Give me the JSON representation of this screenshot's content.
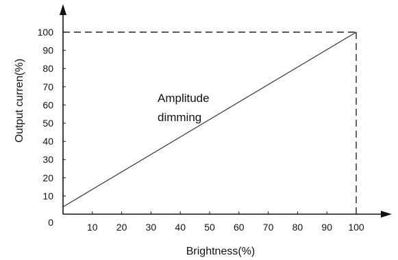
{
  "chart_data": {
    "type": "line",
    "xlabel": "Brightness(%)",
    "ylabel": "Output curren(%)",
    "xlim": [
      0,
      100
    ],
    "ylim": [
      0,
      100
    ],
    "x_ticks": [
      "10",
      "20",
      "30",
      "40",
      "50",
      "60",
      "70",
      "80",
      "90",
      "100"
    ],
    "y_ticks": [
      "0",
      "10",
      "20",
      "30",
      "40",
      "50",
      "60",
      "70",
      "80",
      "90",
      "100"
    ],
    "series": [
      {
        "x": [
          0,
          100
        ],
        "y": [
          4,
          100
        ]
      }
    ],
    "reference_lines": [
      {
        "style": "dashed",
        "x": [
          0,
          100
        ],
        "y": [
          100,
          100
        ]
      },
      {
        "style": "dashed",
        "x": [
          100,
          100
        ],
        "y": [
          0,
          100
        ]
      }
    ],
    "annotations": [
      "Amplitude",
      "dimming"
    ],
    "grid": false,
    "colors": {
      "line": "#333333",
      "axis": "#111111"
    }
  }
}
